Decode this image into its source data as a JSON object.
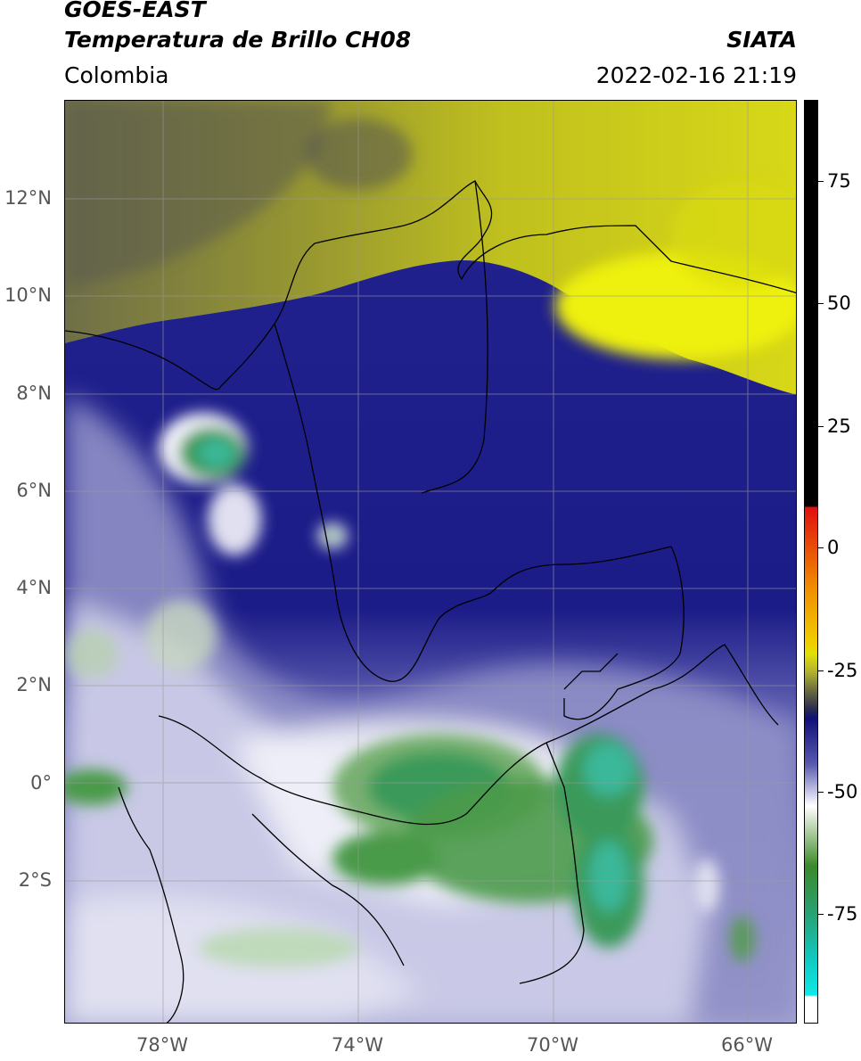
{
  "header": {
    "satellite": "GOES-EAST",
    "product": "Temperatura de Brillo CH08",
    "organization": "SIATA",
    "region": "Colombia",
    "datetime": "2022-02-16 21:19"
  },
  "map": {
    "lat_labels": [
      "12°N",
      "10°N",
      "8°N",
      "6°N",
      "4°N",
      "2°N",
      "0°",
      "2°S"
    ],
    "lon_labels": [
      "78°W",
      "74°W",
      "70°W",
      "66°W"
    ],
    "gridlines": true,
    "colors": {
      "warm_dry": "#c8c81e",
      "bright_yellow": "#eef00a",
      "olive": "#7a7a40",
      "navy": "#1a1a8a",
      "lavender": "#b8b8dc",
      "white_cloud": "#f4f4fa",
      "green": "#3a8a3a",
      "teal": "#3ab89a"
    }
  },
  "colorbar": {
    "tick_labels": [
      "75",
      "50",
      "25",
      "0",
      "-25",
      "-50",
      "-75"
    ],
    "range": [
      -95,
      90
    ],
    "colors": {
      "black_top": "#000000",
      "red": "#e01010",
      "orange": "#f0a000",
      "yellow": "#e8e80a",
      "olive": "#6a6a40",
      "navy": "#10107a",
      "white": "#ffffff",
      "green": "#3a8a2a",
      "cyan": "#10e0e0"
    }
  }
}
